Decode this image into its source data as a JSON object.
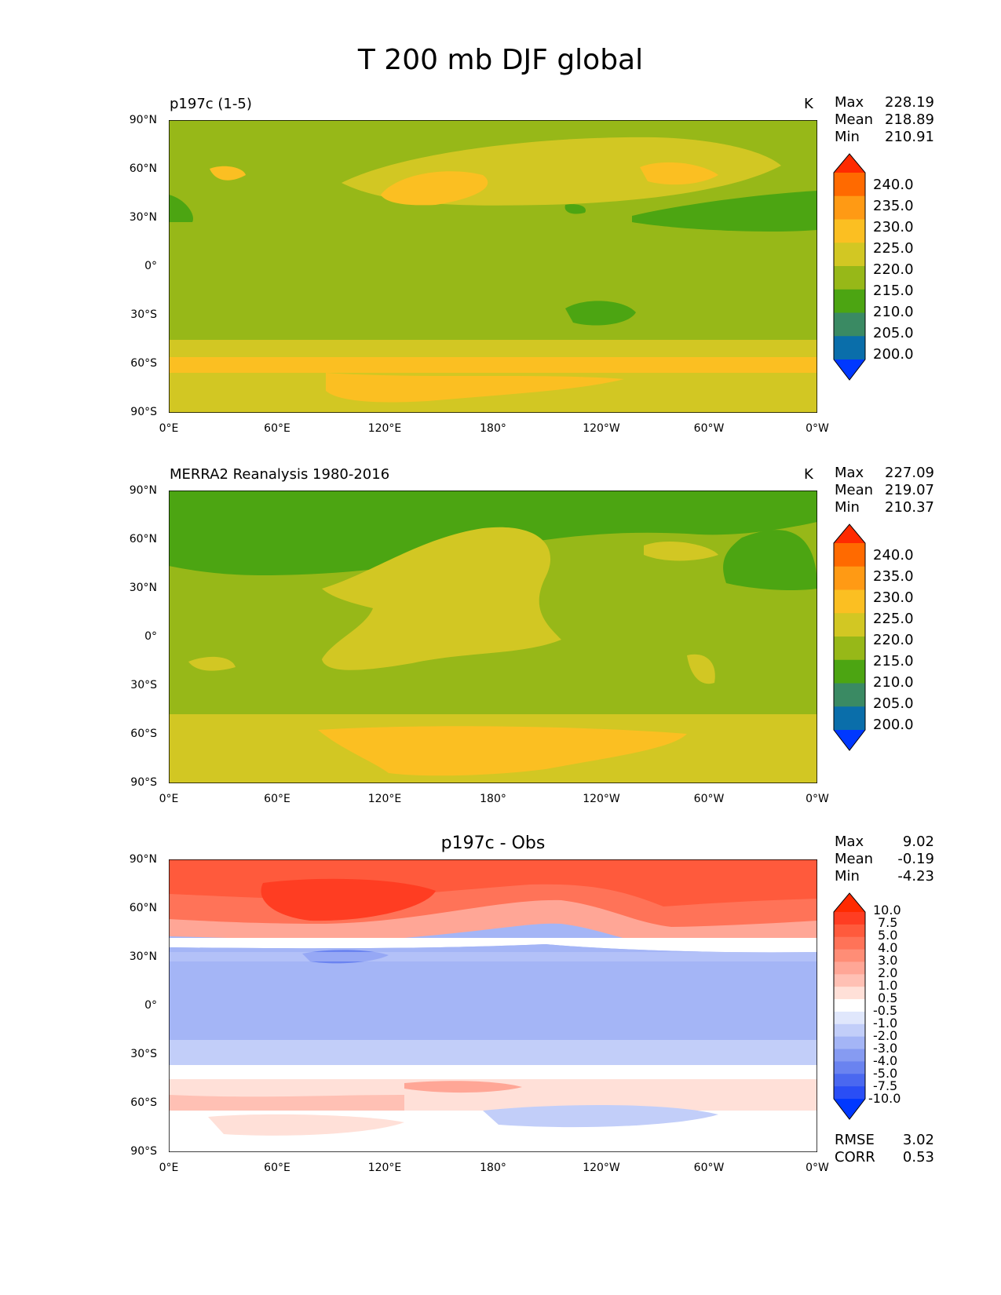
{
  "title": "T 200 mb DJF global",
  "chart_data": [
    {
      "type": "heatmap",
      "title": "p197c (1-5)",
      "units": "K",
      "stats": {
        "max": "228.19",
        "mean": "218.89",
        "min": "210.91"
      },
      "stat_labels": {
        "max": "Max",
        "mean": "Mean",
        "min": "Min"
      },
      "x_ticks": [
        "0°E",
        "60°E",
        "120°E",
        "180°",
        "120°W",
        "60°W",
        "0°W"
      ],
      "y_ticks": [
        "90°N",
        "60°N",
        "30°N",
        "0°",
        "30°S",
        "60°S",
        "90°S"
      ],
      "colorbar": {
        "levels": [
          "240.0",
          "235.0",
          "230.0",
          "225.0",
          "220.0",
          "215.0",
          "210.0",
          "205.0",
          "200.0"
        ],
        "colors": [
          "#ff2a00",
          "#ff6a00",
          "#ff9a14",
          "#fbbf22",
          "#d2c723",
          "#97b818",
          "#4ca512",
          "#3a8a63",
          "#0a6eaa",
          "#0038ff"
        ]
      }
    },
    {
      "type": "heatmap",
      "title": "MERRA2 Reanalysis 1980-2016",
      "units": "K",
      "stats": {
        "max": "227.09",
        "mean": "219.07",
        "min": "210.37"
      },
      "stat_labels": {
        "max": "Max",
        "mean": "Mean",
        "min": "Min"
      },
      "x_ticks": [
        "0°E",
        "60°E",
        "120°E",
        "180°",
        "120°W",
        "60°W",
        "0°W"
      ],
      "y_ticks": [
        "90°N",
        "60°N",
        "30°N",
        "0°",
        "30°S",
        "60°S",
        "90°S"
      ],
      "colorbar": {
        "levels": [
          "240.0",
          "235.0",
          "230.0",
          "225.0",
          "220.0",
          "215.0",
          "210.0",
          "205.0",
          "200.0"
        ],
        "colors": [
          "#ff2a00",
          "#ff6a00",
          "#ff9a14",
          "#fbbf22",
          "#d2c723",
          "#97b818",
          "#4ca512",
          "#3a8a63",
          "#0a6eaa",
          "#0038ff"
        ]
      }
    },
    {
      "type": "heatmap",
      "title": "p197c - Obs",
      "units": "",
      "stats": {
        "max": "9.02",
        "mean": "-0.19",
        "min": "-4.23"
      },
      "stat_labels": {
        "max": "Max",
        "mean": "Mean",
        "min": "Min"
      },
      "metrics": {
        "rmse_label": "RMSE",
        "rmse": "3.02",
        "corr_label": "CORR",
        "corr": "0.53"
      },
      "x_ticks": [
        "0°E",
        "60°E",
        "120°E",
        "180°",
        "120°W",
        "60°W",
        "0°W"
      ],
      "y_ticks": [
        "90°N",
        "60°N",
        "30°N",
        "0°",
        "30°S",
        "60°S",
        "90°S"
      ],
      "colorbar": {
        "levels": [
          "10.0",
          "7.5",
          "5.0",
          "4.0",
          "3.0",
          "2.0",
          "1.0",
          "0.5",
          "-0.5",
          "-1.0",
          "-2.0",
          "-3.0",
          "-4.0",
          "-5.0",
          "-7.5",
          "-10.0"
        ],
        "colors": [
          "#ff2a00",
          "#ff3d22",
          "#ff5a3c",
          "#ff7358",
          "#ff8d76",
          "#ffa696",
          "#ffc0b4",
          "#ffe0d8",
          "#ffffff",
          "#e0e7fc",
          "#c2cef9",
          "#a4b5f6",
          "#869bf2",
          "#6a83f0",
          "#4a68f0",
          "#2a4ef5",
          "#0038ff"
        ]
      }
    }
  ]
}
